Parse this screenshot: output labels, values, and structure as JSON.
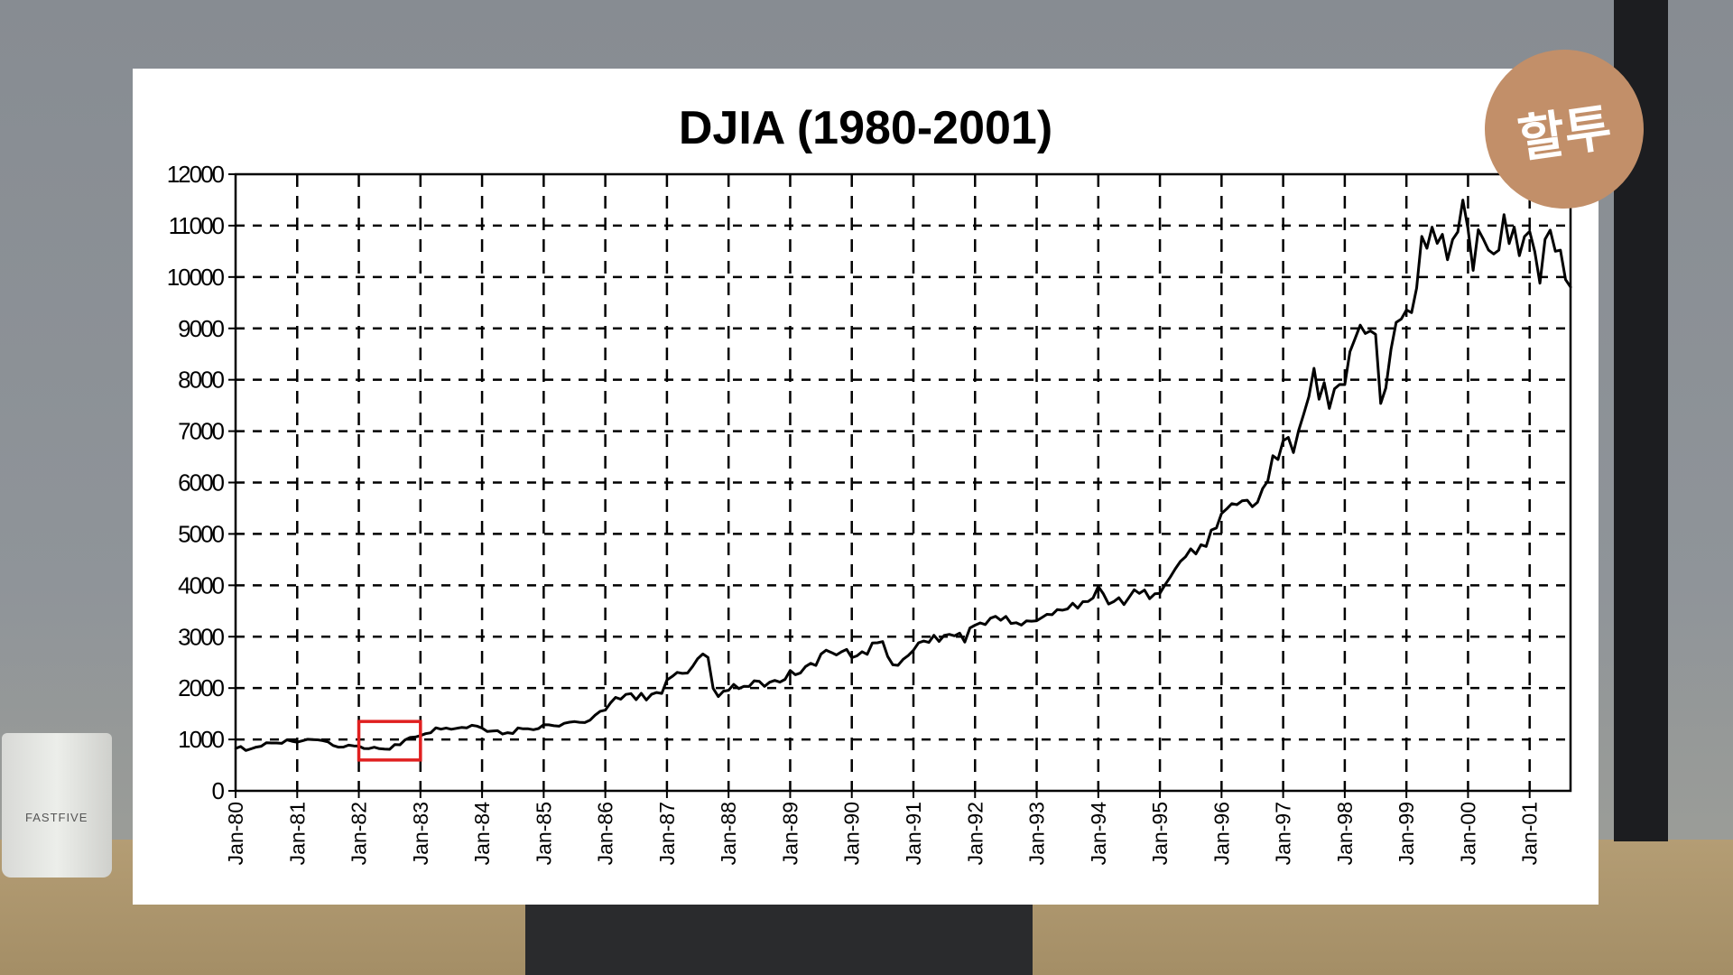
{
  "chart_data": {
    "type": "line",
    "title": "DJIA (1980-2001)",
    "xlabel": "",
    "ylabel": "",
    "ylim": [
      0,
      12000
    ],
    "yticks": [
      "0",
      "1000",
      "2000",
      "3000",
      "4000",
      "5000",
      "6000",
      "7000",
      "8000",
      "9000",
      "10000",
      "11000",
      "12000"
    ],
    "xticks": [
      "Jan-80",
      "Jan-81",
      "Jan-82",
      "Jan-83",
      "Jan-84",
      "Jan-85",
      "Jan-86",
      "Jan-87",
      "Jan-88",
      "Jan-89",
      "Jan-90",
      "Jan-91",
      "Jan-92",
      "Jan-93",
      "Jan-94",
      "Jan-95",
      "Jan-96",
      "Jan-97",
      "Jan-98",
      "Jan-99",
      "Jan-00",
      "Jan-01"
    ],
    "grid": true,
    "grid_style": "dashed",
    "line_color": "#000000",
    "series": [
      {
        "start": "Jan-80",
        "frequency": "monthly",
        "values": [
          824,
          863,
          786,
          817,
          851,
          868,
          935,
          932,
          932,
          924,
          993,
          964,
          947,
          974,
          1004,
          998,
          992,
          977,
          952,
          882,
          850,
          853,
          889,
          875,
          871,
          824,
          822,
          848,
          820,
          812,
          809,
          901,
          896,
          991,
          1039,
          1047,
          1076,
          1113,
          1130,
          1226,
          1200,
          1222,
          1199,
          1216,
          1233,
          1225,
          1276,
          1259,
          1221,
          1155,
          1165,
          1171,
          1105,
          1132,
          1115,
          1224,
          1207,
          1207,
          1189,
          1212,
          1287,
          1284,
          1267,
          1258,
          1315,
          1336,
          1348,
          1334,
          1329,
          1374,
          1472,
          1547,
          1571,
          1709,
          1819,
          1784,
          1877,
          1893,
          1775,
          1898,
          1768,
          1878,
          1914,
          1896,
          2158,
          2224,
          2305,
          2286,
          2292,
          2419,
          2572,
          2663,
          2596,
          1994,
          1834,
          1939,
          1958,
          2072,
          1988,
          2032,
          2031,
          2142,
          2129,
          2032,
          2113,
          2149,
          2115,
          2169,
          2342,
          2259,
          2294,
          2419,
          2480,
          2440,
          2661,
          2737,
          2693,
          2645,
          2706,
          2753,
          2591,
          2627,
          2707,
          2657,
          2877,
          2881,
          2905,
          2614,
          2453,
          2442,
          2560,
          2634,
          2736,
          2882,
          2914,
          2888,
          3028,
          2907,
          3025,
          3044,
          3017,
          3069,
          2895,
          3169,
          3224,
          3268,
          3236,
          3359,
          3397,
          3319,
          3394,
          3257,
          3272,
          3226,
          3306,
          3301,
          3310,
          3371,
          3435,
          3428,
          3527,
          3516,
          3540,
          3651,
          3555,
          3681,
          3684,
          3754,
          3978,
          3832,
          3636,
          3682,
          3759,
          3625,
          3765,
          3913,
          3843,
          3908,
          3739,
          3834,
          3844,
          4011,
          4158,
          4321,
          4465,
          4556,
          4709,
          4611,
          4789,
          4756,
          5075,
          5117,
          5395,
          5486,
          5588,
          5569,
          5643,
          5655,
          5529,
          5616,
          5882,
          6029,
          6522,
          6448,
          6813,
          6878,
          6584,
          7009,
          7331,
          7673,
          8223,
          7622,
          7945,
          7442,
          7823,
          7908,
          7907,
          8546,
          8800,
          9063,
          8900,
          8952,
          8883,
          7539,
          7843,
          8592,
          9117,
          9181,
          9359,
          9307,
          9786,
          10789,
          10560,
          10971,
          10655,
          10829,
          10337,
          10730,
          10878,
          11497,
          10941,
          10128,
          10922,
          10734,
          10522,
          10448,
          10522,
          11215,
          10651,
          10971,
          10415,
          10788,
          10887,
          10495,
          9879,
          10735,
          10912,
          10502,
          10523,
          9950,
          9800
        ]
      }
    ],
    "annotations": [
      {
        "type": "highlight-box",
        "x_range": [
          "Jan-82",
          "Jan-83"
        ],
        "y_range": [
          600,
          1350
        ],
        "color": "#e02020"
      }
    ]
  },
  "logo": {
    "text": "할투",
    "color": "#c28f69"
  },
  "cup": {
    "text": "FASTFIVE"
  }
}
